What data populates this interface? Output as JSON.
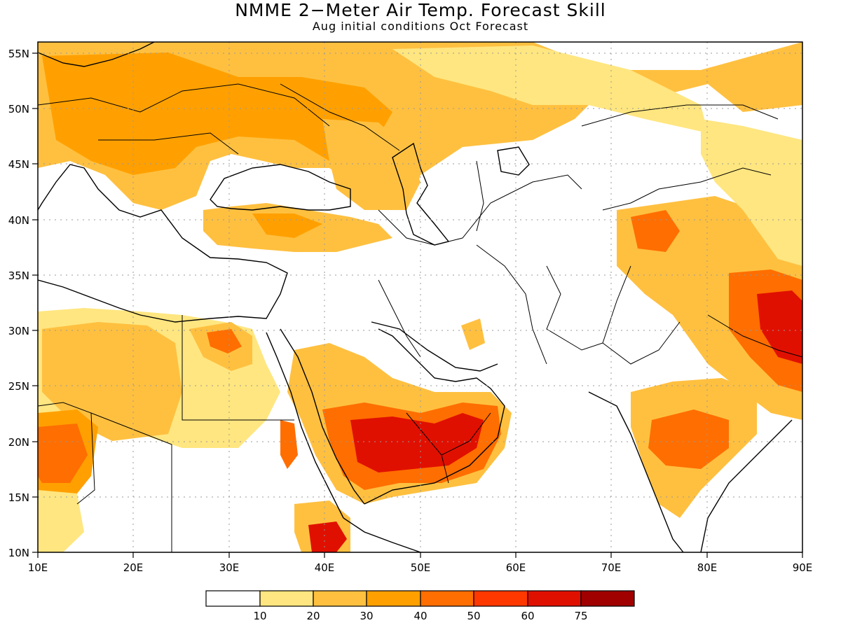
{
  "title": "NMME 2−Meter Air Temp. Forecast Skill",
  "subtitle": "Aug initial conditions  Oct Forecast",
  "map": {
    "lon_range": [
      10,
      90
    ],
    "lat_range": [
      10,
      56
    ],
    "lon_ticks": [
      "10E",
      "20E",
      "30E",
      "40E",
      "50E",
      "60E",
      "70E",
      "80E",
      "90E"
    ],
    "lat_ticks": [
      "10N",
      "15N",
      "20N",
      "25N",
      "30N",
      "35N",
      "40N",
      "45N",
      "50N",
      "55N"
    ],
    "grid": "dotted"
  },
  "legend": {
    "colors": [
      "#ffffff",
      "#ffe680",
      "#ffc040",
      "#ffa000",
      "#ff6e00",
      "#ff3800",
      "#e01000",
      "#a00000"
    ],
    "labels": [
      "10",
      "20",
      "30",
      "40",
      "50",
      "60",
      "75"
    ]
  }
}
